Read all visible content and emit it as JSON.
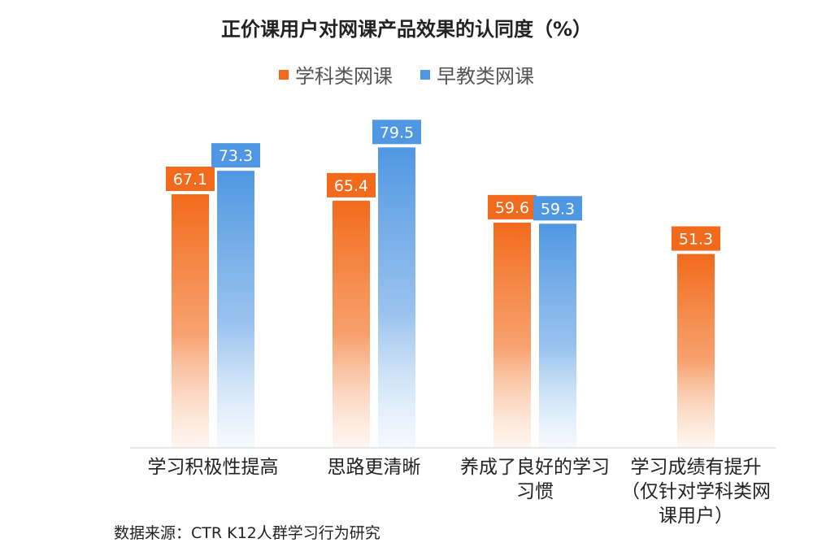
{
  "chart_data": {
    "type": "bar",
    "title": "正价课用户对网课产品效果的认同度（%）",
    "categories": [
      "学习积极性提高",
      "思路更清晰",
      "养成了良好的学习习惯",
      "学习成绩有提升（仅针对学科类网课用户）"
    ],
    "series": [
      {
        "name": "学科类网课",
        "values": [
          67.1,
          65.4,
          59.6,
          51.3
        ],
        "color": "#f26a1b"
      },
      {
        "name": "早教类网课",
        "values": [
          73.3,
          79.5,
          59.3,
          null
        ],
        "color": "#4f97e2"
      }
    ],
    "ylim": [
      0,
      100
    ],
    "grid": false,
    "legend_position": "top-center",
    "source": "数据来源：CTR K12人群学习行为研究"
  }
}
